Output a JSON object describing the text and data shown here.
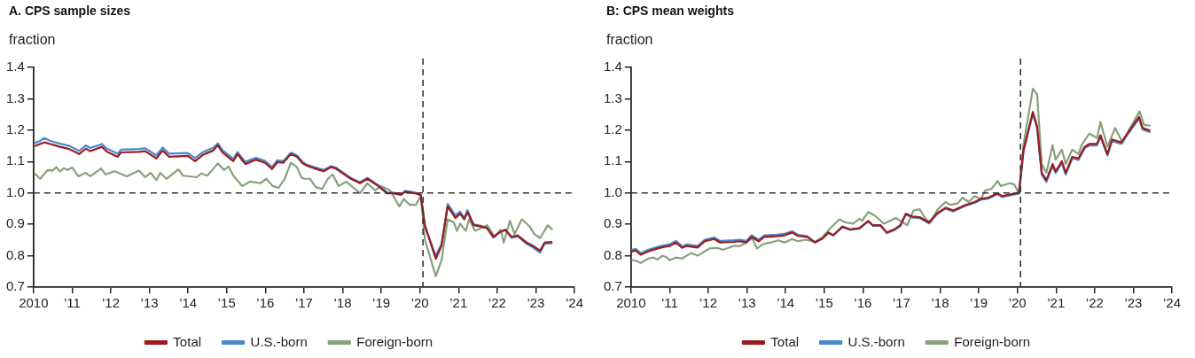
{
  "chart_data": [
    {
      "type": "line",
      "title": "A. CPS sample sizes",
      "ylabel": "fraction",
      "xlim": [
        2010,
        2024
      ],
      "xticks": [
        {
          "value": 2010,
          "label": "2010"
        },
        {
          "value": 2011,
          "label": "’11"
        },
        {
          "value": 2012,
          "label": "’12"
        },
        {
          "value": 2013,
          "label": "’13"
        },
        {
          "value": 2014,
          "label": "’14"
        },
        {
          "value": 2015,
          "label": "’15"
        },
        {
          "value": 2016,
          "label": "’16"
        },
        {
          "value": 2017,
          "label": "’17"
        },
        {
          "value": 2018,
          "label": "’18"
        },
        {
          "value": 2019,
          "label": "’19"
        },
        {
          "value": 2020,
          "label": "’20"
        },
        {
          "value": 2021,
          "label": "’21"
        },
        {
          "value": 2022,
          "label": "’22"
        },
        {
          "value": 2023,
          "label": "’23"
        },
        {
          "value": 2024,
          "label": "’24"
        }
      ],
      "ylim": [
        0.7,
        1.4
      ],
      "yticks": [
        0.7,
        0.8,
        0.9,
        {
          "value": 1,
          "label": "1.0"
        },
        1.1,
        1.2,
        1.3,
        1.4
      ],
      "grid": false,
      "legend": "bottom",
      "marker": "none",
      "line_style": "solid",
      "ref_lines": [
        {
          "axis": "y",
          "value": 1,
          "color": "#333333",
          "line_style": "dashed"
        },
        {
          "axis": "x",
          "value": 2020.08,
          "color": "#333333",
          "line_style": "dashed"
        }
      ],
      "series": [
        {
          "name": "Total",
          "color": "#9b1b1e",
          "x": [
            2010.03,
            2010.17,
            2010.28,
            2010.45,
            2010.68,
            2010.92,
            2011.18,
            2011.35,
            2011.47,
            2011.77,
            2011.9,
            2012.18,
            2012.26,
            2012.73,
            2012.89,
            2013.18,
            2013.34,
            2013.51,
            2013.99,
            2014.18,
            2014.38,
            2014.65,
            2014.77,
            2014.89,
            2015.17,
            2015.28,
            2015.48,
            2015.75,
            2015.99,
            2016.17,
            2016.31,
            2016.46,
            2016.66,
            2016.82,
            2016.97,
            2017.07,
            2017.27,
            2017.51,
            2017.7,
            2017.82,
            2018.21,
            2018.45,
            2018.64,
            2018.92,
            2019.15,
            2019.31,
            2019.51,
            2019.62,
            2019.86,
            2020.02,
            2020.13,
            2020.41,
            2020.56,
            2020.72,
            2020.92,
            2021.04,
            2021.15,
            2021.23,
            2021.39,
            2021.58,
            2021.74,
            2021.9,
            2022.05,
            2022.21,
            2022.37,
            2022.53,
            2022.76,
            2022.92,
            2023.11,
            2023.23,
            2023.43
          ],
          "values": [
            1.149,
            1.156,
            1.161,
            1.155,
            1.147,
            1.14,
            1.124,
            1.141,
            1.133,
            1.147,
            1.131,
            1.115,
            1.129,
            1.131,
            1.133,
            1.11,
            1.135,
            1.115,
            1.118,
            1.101,
            1.121,
            1.135,
            1.152,
            1.129,
            1.101,
            1.124,
            1.092,
            1.106,
            1.096,
            1.076,
            1.098,
            1.096,
            1.124,
            1.115,
            1.094,
            1.087,
            1.078,
            1.069,
            1.082,
            1.078,
            1.045,
            1.031,
            1.045,
            1.022,
            0.999,
            0.999,
            0.994,
            1.004,
            0.999,
            0.993,
            0.897,
            0.79,
            0.832,
            0.957,
            0.92,
            0.934,
            0.916,
            0.939,
            0.897,
            0.893,
            0.888,
            0.86,
            0.874,
            0.883,
            0.86,
            0.865,
            0.842,
            0.832,
            0.816,
            0.842,
            0.844
          ]
        },
        {
          "name": "U.S.-born",
          "color": "#4a88d0",
          "x": [
            2010.03,
            2010.17,
            2010.28,
            2010.45,
            2010.68,
            2010.92,
            2011.18,
            2011.35,
            2011.47,
            2011.77,
            2011.9,
            2012.18,
            2012.26,
            2012.73,
            2012.89,
            2013.18,
            2013.34,
            2013.51,
            2013.99,
            2014.18,
            2014.38,
            2014.65,
            2014.77,
            2014.89,
            2015.17,
            2015.28,
            2015.48,
            2015.75,
            2015.99,
            2016.17,
            2016.31,
            2016.46,
            2016.66,
            2016.82,
            2016.97,
            2017.07,
            2017.27,
            2017.51,
            2017.7,
            2017.82,
            2018.21,
            2018.45,
            2018.64,
            2018.92,
            2019.15,
            2019.31,
            2019.51,
            2019.62,
            2019.86,
            2020.02,
            2020.13,
            2020.41,
            2020.56,
            2020.72,
            2020.92,
            2021.04,
            2021.15,
            2021.23,
            2021.39,
            2021.58,
            2021.74,
            2021.9,
            2022.05,
            2022.21,
            2022.37,
            2022.53,
            2022.76,
            2022.92,
            2023.11,
            2023.23,
            2023.43
          ],
          "values": [
            1.159,
            1.166,
            1.175,
            1.165,
            1.157,
            1.15,
            1.134,
            1.151,
            1.143,
            1.156,
            1.141,
            1.125,
            1.138,
            1.14,
            1.142,
            1.12,
            1.145,
            1.125,
            1.127,
            1.111,
            1.13,
            1.144,
            1.158,
            1.136,
            1.108,
            1.13,
            1.099,
            1.112,
            1.102,
            1.082,
            1.104,
            1.101,
            1.128,
            1.119,
            1.098,
            1.09,
            1.082,
            1.073,
            1.085,
            1.081,
            1.048,
            1.034,
            1.048,
            1.025,
            1.002,
            1.001,
            0.996,
            1.007,
            1.002,
            0.995,
            0.892,
            0.8,
            0.838,
            0.965,
            0.928,
            0.94,
            0.92,
            0.945,
            0.9,
            0.895,
            0.888,
            0.858,
            0.873,
            0.882,
            0.857,
            0.862,
            0.838,
            0.827,
            0.81,
            0.838,
            0.84
          ]
        },
        {
          "name": "Foreign-born",
          "color": "#86a27a",
          "x": [
            2010.03,
            2010.17,
            2010.37,
            2010.49,
            2010.59,
            2010.68,
            2010.78,
            2010.88,
            2011.0,
            2011.16,
            2011.35,
            2011.47,
            2011.75,
            2011.86,
            2012.1,
            2012.41,
            2012.73,
            2012.89,
            2013.03,
            2013.18,
            2013.28,
            2013.44,
            2013.75,
            2013.87,
            2014.22,
            2014.34,
            2014.5,
            2014.77,
            2014.93,
            2015.05,
            2015.17,
            2015.4,
            2015.6,
            2015.87,
            2016.03,
            2016.19,
            2016.34,
            2016.5,
            2016.66,
            2016.82,
            2016.93,
            2017.0,
            2017.15,
            2017.31,
            2017.47,
            2017.62,
            2017.74,
            2017.9,
            2018.09,
            2018.45,
            2018.64,
            2018.84,
            2019.0,
            2019.23,
            2019.47,
            2019.58,
            2019.74,
            2019.9,
            2020.02,
            2020.13,
            2020.41,
            2020.56,
            2020.72,
            2020.88,
            2020.96,
            2021.04,
            2021.19,
            2021.27,
            2021.43,
            2021.74,
            2021.94,
            2022.09,
            2022.17,
            2022.33,
            2022.45,
            2022.64,
            2022.84,
            2022.96,
            2023.11,
            2023.31,
            2023.43
          ],
          "values": [
            1.062,
            1.045,
            1.073,
            1.071,
            1.082,
            1.068,
            1.079,
            1.073,
            1.081,
            1.053,
            1.064,
            1.053,
            1.078,
            1.059,
            1.069,
            1.053,
            1.071,
            1.05,
            1.064,
            1.041,
            1.064,
            1.045,
            1.075,
            1.055,
            1.05,
            1.062,
            1.055,
            1.094,
            1.073,
            1.084,
            1.055,
            1.022,
            1.036,
            1.031,
            1.045,
            1.022,
            1.016,
            1.045,
            1.096,
            1.082,
            1.05,
            1.045,
            1.045,
            1.018,
            1.013,
            1.045,
            1.059,
            1.022,
            1.036,
            0.999,
            1.031,
            1.008,
            1.022,
            1.008,
            0.957,
            0.981,
            0.962,
            0.962,
            0.99,
            0.851,
            0.735,
            0.786,
            0.916,
            0.906,
            0.879,
            0.902,
            0.879,
            0.916,
            0.879,
            0.897,
            0.86,
            0.883,
            0.842,
            0.911,
            0.869,
            0.916,
            0.893,
            0.869,
            0.856,
            0.897,
            0.883
          ]
        }
      ]
    },
    {
      "type": "line",
      "title": "B: CPS mean weights",
      "ylabel": "fraction",
      "xlim": [
        2010,
        2024
      ],
      "xticks": [
        {
          "value": 2010,
          "label": "2010"
        },
        {
          "value": 2011,
          "label": "’11"
        },
        {
          "value": 2012,
          "label": "’12"
        },
        {
          "value": 2013,
          "label": "’13"
        },
        {
          "value": 2014,
          "label": "’14"
        },
        {
          "value": 2015,
          "label": "’15"
        },
        {
          "value": 2016,
          "label": "’16"
        },
        {
          "value": 2017,
          "label": "’17"
        },
        {
          "value": 2018,
          "label": "’18"
        },
        {
          "value": 2019,
          "label": "’19"
        },
        {
          "value": 2020,
          "label": "’20"
        },
        {
          "value": 2021,
          "label": "’21"
        },
        {
          "value": 2022,
          "label": "’22"
        },
        {
          "value": 2023,
          "label": "’23"
        },
        {
          "value": 2024,
          "label": "’24"
        }
      ],
      "ylim": [
        0.7,
        1.4
      ],
      "yticks": [
        0.7,
        0.8,
        0.9,
        {
          "value": 1,
          "label": "1.0"
        },
        1.1,
        1.2,
        1.3,
        1.4
      ],
      "grid": false,
      "legend": "bottom",
      "marker": "none",
      "line_style": "solid",
      "ref_lines": [
        {
          "axis": "y",
          "value": 1,
          "color": "#333333",
          "line_style": "dashed"
        },
        {
          "axis": "x",
          "value": 2020.08,
          "color": "#333333",
          "line_style": "dashed"
        }
      ],
      "series": [
        {
          "name": "Total",
          "color": "#9b1b1e",
          "x": [
            2010.02,
            2010.13,
            2010.25,
            2010.45,
            2010.69,
            2010.85,
            2011.0,
            2011.16,
            2011.32,
            2011.44,
            2011.72,
            2011.91,
            2012.15,
            2012.31,
            2012.66,
            2012.82,
            2012.98,
            2013.12,
            2013.3,
            2013.45,
            2013.77,
            2013.97,
            2014.17,
            2014.32,
            2014.56,
            2014.76,
            2014.96,
            2015.11,
            2015.23,
            2015.47,
            2015.67,
            2015.91,
            2016.14,
            2016.26,
            2016.46,
            2016.62,
            2016.81,
            2016.97,
            2017.11,
            2017.27,
            2017.47,
            2017.71,
            2017.91,
            2018.14,
            2018.34,
            2018.66,
            2018.89,
            2019.05,
            2019.25,
            2019.49,
            2019.6,
            2019.84,
            2020.04,
            2020.16,
            2020.4,
            2020.51,
            2020.63,
            2020.75,
            2020.91,
            2020.99,
            2021.15,
            2021.25,
            2021.42,
            2021.58,
            2021.74,
            2021.86,
            2022.06,
            2022.15,
            2022.33,
            2022.45,
            2022.69,
            2022.92,
            2023.15,
            2023.24,
            2023.44
          ],
          "values": [
            0.814,
            0.816,
            0.803,
            0.814,
            0.823,
            0.828,
            0.831,
            0.842,
            0.825,
            0.831,
            0.826,
            0.846,
            0.853,
            0.842,
            0.844,
            0.846,
            0.842,
            0.86,
            0.846,
            0.86,
            0.862,
            0.865,
            0.874,
            0.863,
            0.86,
            0.842,
            0.855,
            0.874,
            0.865,
            0.893,
            0.884,
            0.888,
            0.911,
            0.897,
            0.897,
            0.874,
            0.884,
            0.897,
            0.934,
            0.925,
            0.923,
            0.906,
            0.934,
            0.953,
            0.944,
            0.962,
            0.971,
            0.981,
            0.985,
            0.999,
            0.99,
            0.996,
            1.001,
            1.138,
            1.258,
            1.212,
            1.064,
            1.041,
            1.092,
            1.069,
            1.101,
            1.064,
            1.115,
            1.11,
            1.147,
            1.156,
            1.156,
            1.184,
            1.124,
            1.17,
            1.161,
            1.203,
            1.242,
            1.207,
            1.198
          ]
        },
        {
          "name": "U.S.-born",
          "color": "#4a88d0",
          "x": [
            2010.02,
            2010.13,
            2010.25,
            2010.45,
            2010.69,
            2010.85,
            2011.0,
            2011.16,
            2011.32,
            2011.44,
            2011.72,
            2011.91,
            2012.15,
            2012.31,
            2012.66,
            2012.82,
            2012.98,
            2013.12,
            2013.3,
            2013.45,
            2013.77,
            2013.97,
            2014.17,
            2014.32,
            2014.56,
            2014.76,
            2014.96,
            2015.11,
            2015.23,
            2015.47,
            2015.67,
            2015.91,
            2016.14,
            2016.26,
            2016.46,
            2016.62,
            2016.81,
            2016.97,
            2017.11,
            2017.27,
            2017.47,
            2017.71,
            2017.91,
            2018.14,
            2018.34,
            2018.66,
            2018.89,
            2019.05,
            2019.25,
            2019.49,
            2019.6,
            2019.84,
            2020.04,
            2020.16,
            2020.4,
            2020.51,
            2020.63,
            2020.75,
            2020.91,
            2020.99,
            2021.15,
            2021.25,
            2021.42,
            2021.58,
            2021.74,
            2021.86,
            2022.06,
            2022.15,
            2022.33,
            2022.45,
            2022.69,
            2022.92,
            2023.15,
            2023.24,
            2023.44
          ],
          "values": [
            0.819,
            0.821,
            0.808,
            0.819,
            0.828,
            0.833,
            0.836,
            0.847,
            0.83,
            0.836,
            0.831,
            0.851,
            0.858,
            0.847,
            0.849,
            0.851,
            0.847,
            0.865,
            0.851,
            0.865,
            0.867,
            0.87,
            0.878,
            0.867,
            0.862,
            0.843,
            0.855,
            0.873,
            0.864,
            0.891,
            0.882,
            0.886,
            0.909,
            0.895,
            0.895,
            0.872,
            0.881,
            0.894,
            0.931,
            0.922,
            0.92,
            0.903,
            0.931,
            0.95,
            0.941,
            0.959,
            0.968,
            0.978,
            0.982,
            0.996,
            0.987,
            0.993,
            0.998,
            1.133,
            1.252,
            1.206,
            1.058,
            1.035,
            1.086,
            1.063,
            1.095,
            1.058,
            1.11,
            1.105,
            1.142,
            1.151,
            1.151,
            1.179,
            1.119,
            1.165,
            1.156,
            1.198,
            1.237,
            1.202,
            1.193
          ]
        },
        {
          "name": "Foreign-born",
          "color": "#86a27a",
          "x": [
            2010.02,
            2010.13,
            2010.25,
            2010.45,
            2010.57,
            2010.69,
            2010.81,
            2010.92,
            2011.0,
            2011.16,
            2011.32,
            2011.56,
            2011.72,
            2011.91,
            2012.03,
            2012.23,
            2012.39,
            2012.66,
            2012.82,
            2012.98,
            2013.14,
            2013.26,
            2013.42,
            2013.61,
            2013.81,
            2013.97,
            2014.17,
            2014.32,
            2014.52,
            2014.76,
            2014.96,
            2015.15,
            2015.39,
            2015.55,
            2015.75,
            2015.91,
            2015.98,
            2016.14,
            2016.34,
            2016.54,
            2016.7,
            2016.85,
            2016.97,
            2017.15,
            2017.31,
            2017.47,
            2017.63,
            2017.75,
            2017.94,
            2018.14,
            2018.26,
            2018.46,
            2018.58,
            2018.74,
            2018.89,
            2019.05,
            2019.17,
            2019.33,
            2019.49,
            2019.57,
            2019.8,
            2019.92,
            2020.04,
            2020.16,
            2020.4,
            2020.51,
            2020.63,
            2020.75,
            2020.91,
            2020.99,
            2021.15,
            2021.25,
            2021.42,
            2021.58,
            2021.66,
            2021.86,
            2022.06,
            2022.15,
            2022.33,
            2022.53,
            2022.72,
            2022.92,
            2023.16,
            2023.28,
            2023.44
          ],
          "values": [
            0.786,
            0.784,
            0.777,
            0.791,
            0.794,
            0.788,
            0.8,
            0.795,
            0.786,
            0.794,
            0.791,
            0.809,
            0.8,
            0.814,
            0.823,
            0.825,
            0.819,
            0.831,
            0.831,
            0.842,
            0.855,
            0.823,
            0.837,
            0.842,
            0.849,
            0.842,
            0.853,
            0.846,
            0.851,
            0.844,
            0.86,
            0.886,
            0.916,
            0.906,
            0.902,
            0.918,
            0.911,
            0.939,
            0.925,
            0.902,
            0.911,
            0.92,
            0.911,
            0.897,
            0.944,
            0.948,
            0.916,
            0.906,
            0.948,
            0.971,
            0.962,
            0.967,
            0.985,
            0.971,
            0.99,
            0.981,
            1.008,
            1.013,
            1.038,
            1.022,
            1.031,
            1.027,
            0.999,
            1.156,
            1.332,
            1.314,
            1.092,
            1.064,
            1.152,
            1.106,
            1.138,
            1.092,
            1.138,
            1.124,
            1.152,
            1.189,
            1.175,
            1.226,
            1.147,
            1.207,
            1.161,
            1.207,
            1.26,
            1.217,
            1.214
          ]
        }
      ]
    }
  ]
}
